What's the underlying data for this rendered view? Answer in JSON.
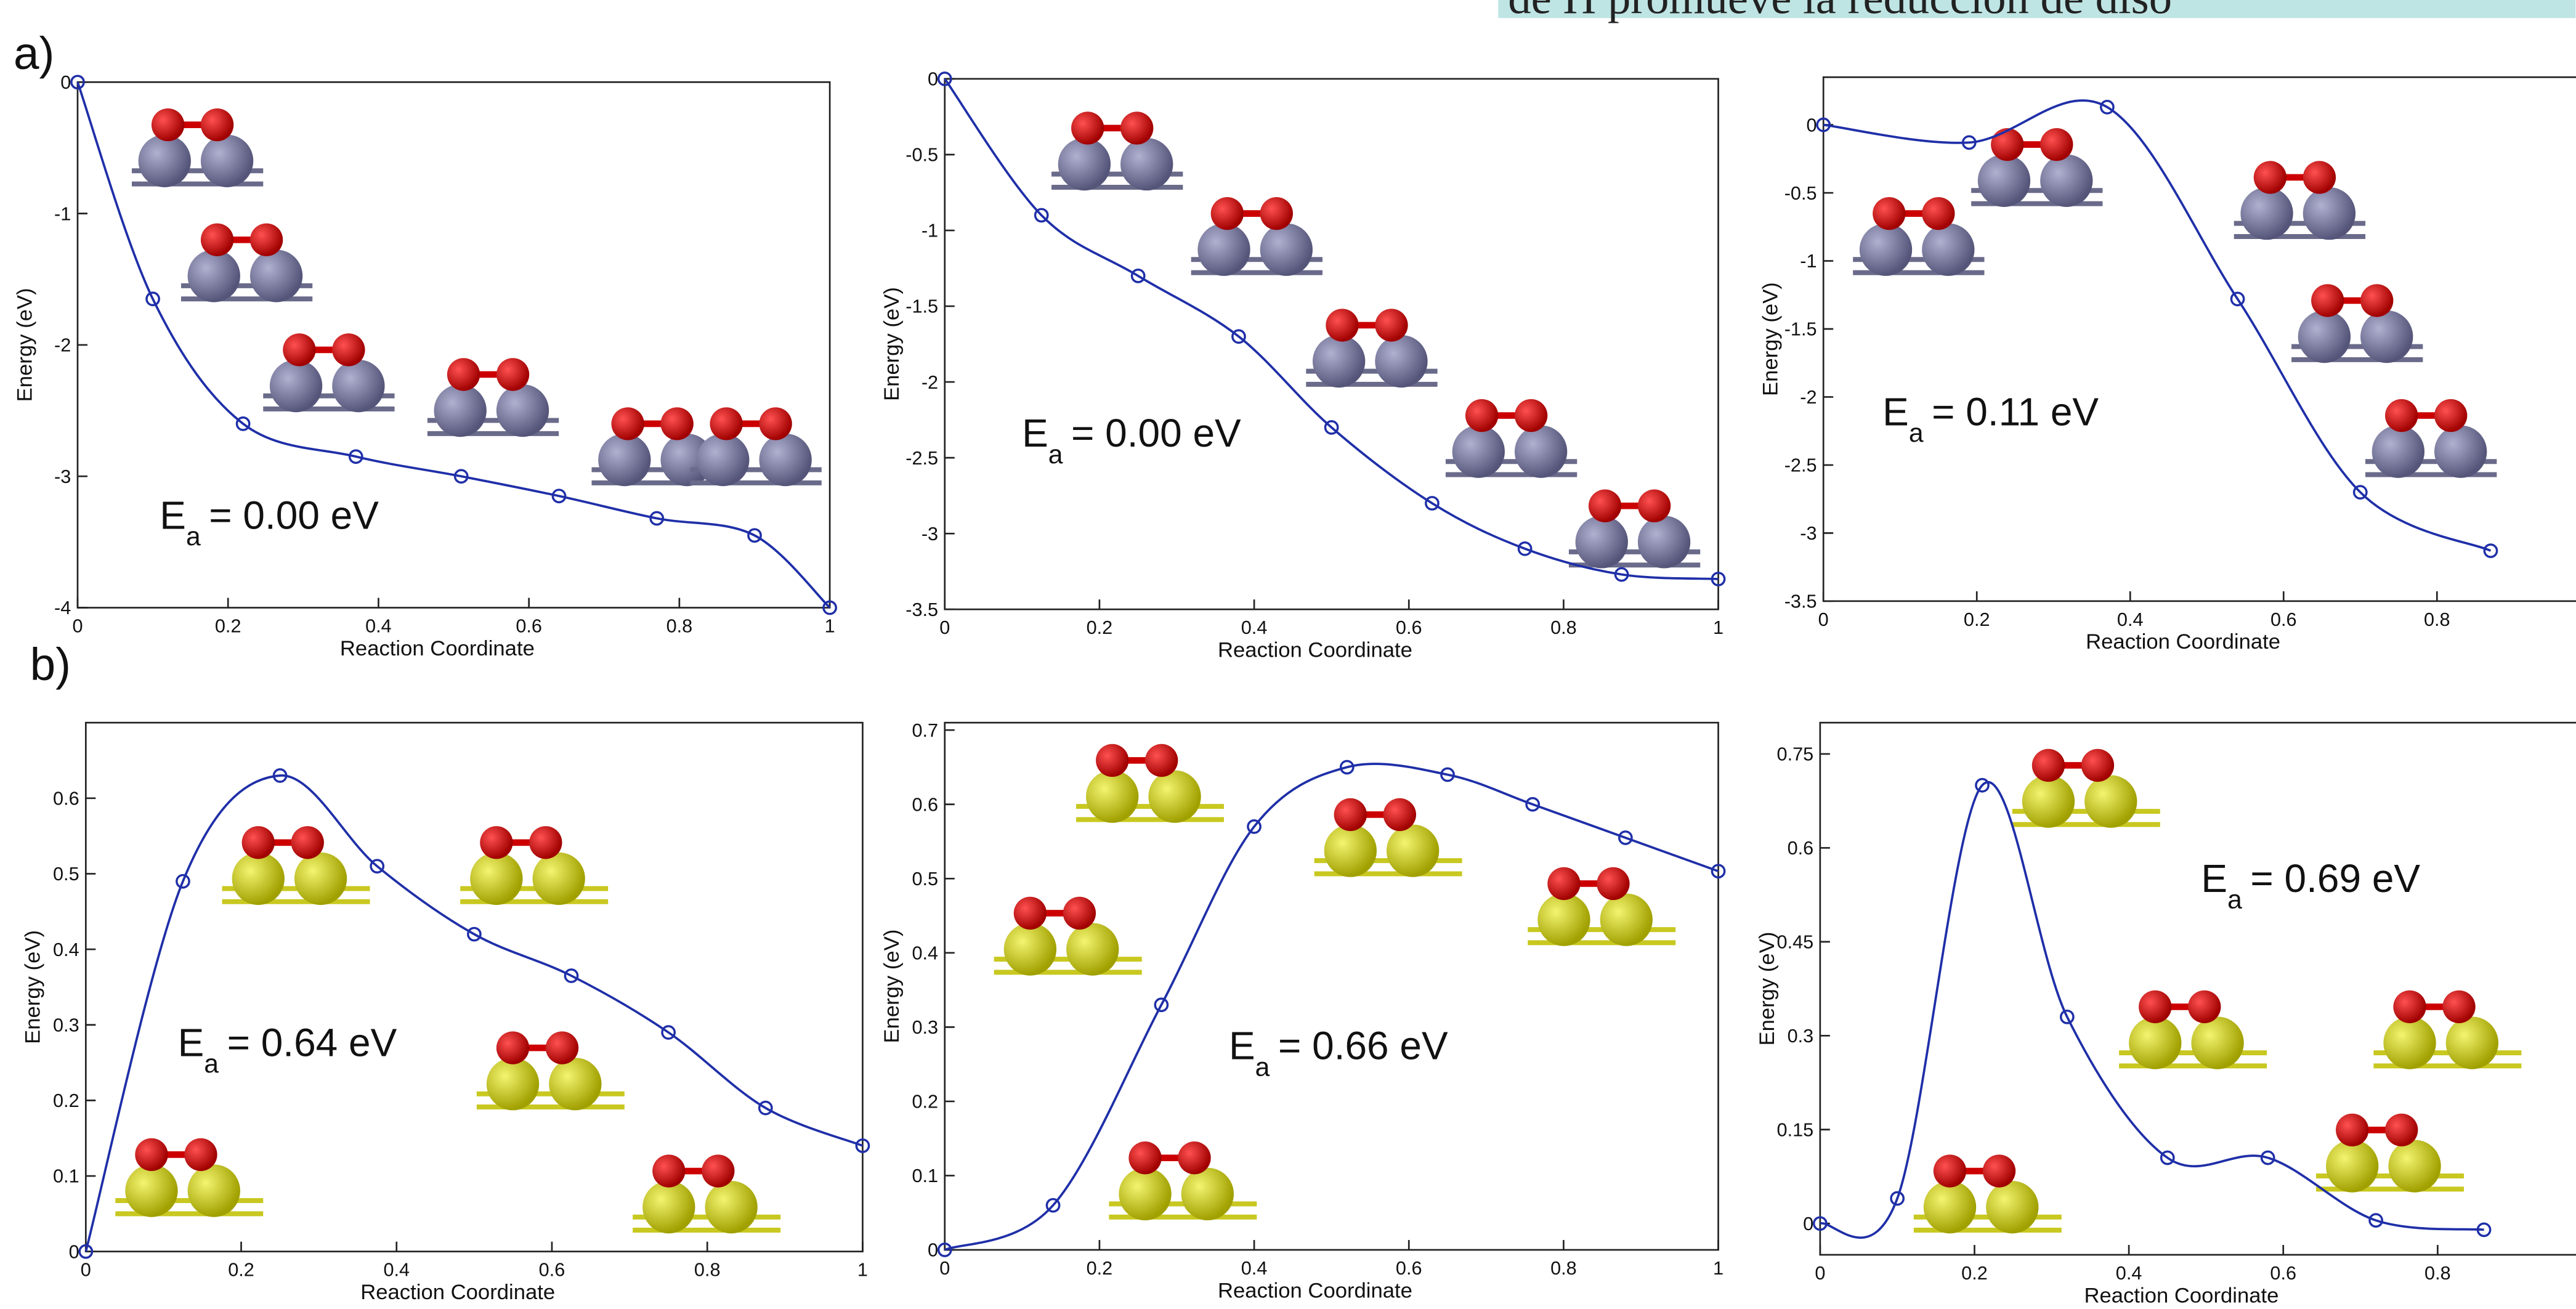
{
  "header": "de H promueve la reducción de diso",
  "panel_labels": [
    "a)",
    "b)"
  ],
  "chart_data": [
    {
      "type": "line",
      "color": "#1f2fa8",
      "xlabel": "Reaction Coordinate",
      "ylabel": "Energy (eV)",
      "annotation": {
        "symbol": "E",
        "subscript": "a",
        "text": "= 0.00 eV"
      },
      "xlim": [
        0,
        1
      ],
      "ylim": [
        -4,
        0
      ],
      "xticks": [
        0,
        0.2,
        0.4,
        0.6,
        0.8,
        1
      ],
      "yticks": [
        0,
        -1,
        -2,
        -3,
        -4
      ],
      "x": [
        0,
        0.1,
        0.22,
        0.37,
        0.51,
        0.64,
        0.77,
        0.9,
        1
      ],
      "values": [
        0,
        -1.65,
        -2.6,
        -2.85,
        -3.0,
        -3.15,
        -3.32,
        -3.45,
        -4.0
      ]
    },
    {
      "type": "line",
      "color": "#1f2fa8",
      "xlabel": "Reaction Coordinate",
      "ylabel": "Energy (eV)",
      "annotation": {
        "symbol": "E",
        "subscript": "a",
        "text": "= 0.00 eV"
      },
      "xlim": [
        0,
        1
      ],
      "ylim": [
        -3.5,
        0
      ],
      "xticks": [
        0,
        0.2,
        0.4,
        0.6,
        0.8,
        1
      ],
      "yticks": [
        0,
        -0.5,
        -1,
        -1.5,
        -2,
        -2.5,
        -3,
        -3.5
      ],
      "x": [
        0,
        0.125,
        0.25,
        0.38,
        0.5,
        0.63,
        0.75,
        0.875,
        1
      ],
      "values": [
        0,
        -0.9,
        -1.3,
        -1.7,
        -2.3,
        -2.8,
        -3.1,
        -3.27,
        -3.3
      ]
    },
    {
      "type": "line",
      "color": "#1f2fa8",
      "xlabel": "Reaction Coordinate",
      "ylabel": "Energy (eV)",
      "annotation": {
        "symbol": "E",
        "subscript": "a",
        "text": "= 0.11 eV"
      },
      "xlim": [
        0,
        1
      ],
      "ylim": [
        -3.5,
        0.35
      ],
      "xticks": [
        0,
        0.2,
        0.4,
        0.6,
        0.8
      ],
      "yticks": [
        0,
        -0.5,
        -1,
        -1.5,
        -2,
        -2.5,
        -3,
        -3.5
      ],
      "x": [
        0,
        0.19,
        0.37,
        0.54,
        0.7,
        0.87
      ],
      "values": [
        0,
        -0.13,
        0.13,
        -1.28,
        -2.7,
        -3.13
      ]
    },
    {
      "type": "line",
      "color": "#1f2fa8",
      "xlabel": "Reaction Coordinate",
      "ylabel": "Energy (eV)",
      "annotation": {
        "symbol": "E",
        "subscript": "a",
        "text": "= 0.64 eV"
      },
      "xlim": [
        0,
        1
      ],
      "ylim": [
        0,
        0.7
      ],
      "xticks": [
        0,
        0.2,
        0.4,
        0.6,
        0.8,
        1
      ],
      "yticks": [
        0,
        0.1,
        0.2,
        0.3,
        0.4,
        0.5,
        0.6
      ],
      "x": [
        0,
        0.125,
        0.25,
        0.375,
        0.5,
        0.625,
        0.75,
        0.875,
        1
      ],
      "values": [
        0,
        0.49,
        0.63,
        0.51,
        0.42,
        0.365,
        0.29,
        0.19,
        0.14
      ]
    },
    {
      "type": "line",
      "color": "#1f2fa8",
      "xlabel": "Reaction Coordinate",
      "ylabel": "Energy (eV)",
      "annotation": {
        "symbol": "E",
        "subscript": "a",
        "text": "= 0.66 eV"
      },
      "xlim": [
        0,
        1
      ],
      "ylim": [
        0,
        0.71
      ],
      "xticks": [
        0,
        0.2,
        0.4,
        0.6,
        0.8,
        1
      ],
      "yticks": [
        0,
        0.1,
        0.2,
        0.3,
        0.4,
        0.5,
        0.6,
        0.7
      ],
      "x": [
        0,
        0.14,
        0.28,
        0.4,
        0.52,
        0.65,
        0.76,
        0.88,
        1
      ],
      "values": [
        0,
        0.06,
        0.33,
        0.57,
        0.65,
        0.64,
        0.6,
        0.555,
        0.51
      ]
    },
    {
      "type": "line",
      "color": "#1f2fa8",
      "xlabel": "Reaction Coordinate",
      "ylabel": "Energy (eV)",
      "annotation": {
        "symbol": "E",
        "subscript": "a",
        "text": "= 0.69 eV"
      },
      "xlim": [
        0,
        1
      ],
      "ylim": [
        -0.05,
        0.8
      ],
      "xticks": [
        0,
        0.2,
        0.4,
        0.6,
        0.8
      ],
      "yticks": [
        0,
        0.15,
        0.3,
        0.45,
        0.6,
        0.75
      ],
      "x": [
        0,
        0.1,
        0.21,
        0.32,
        0.45,
        0.58,
        0.72,
        0.86
      ],
      "values": [
        0,
        0.04,
        0.7,
        0.33,
        0.105,
        0.105,
        0.005,
        -0.01
      ]
    }
  ]
}
